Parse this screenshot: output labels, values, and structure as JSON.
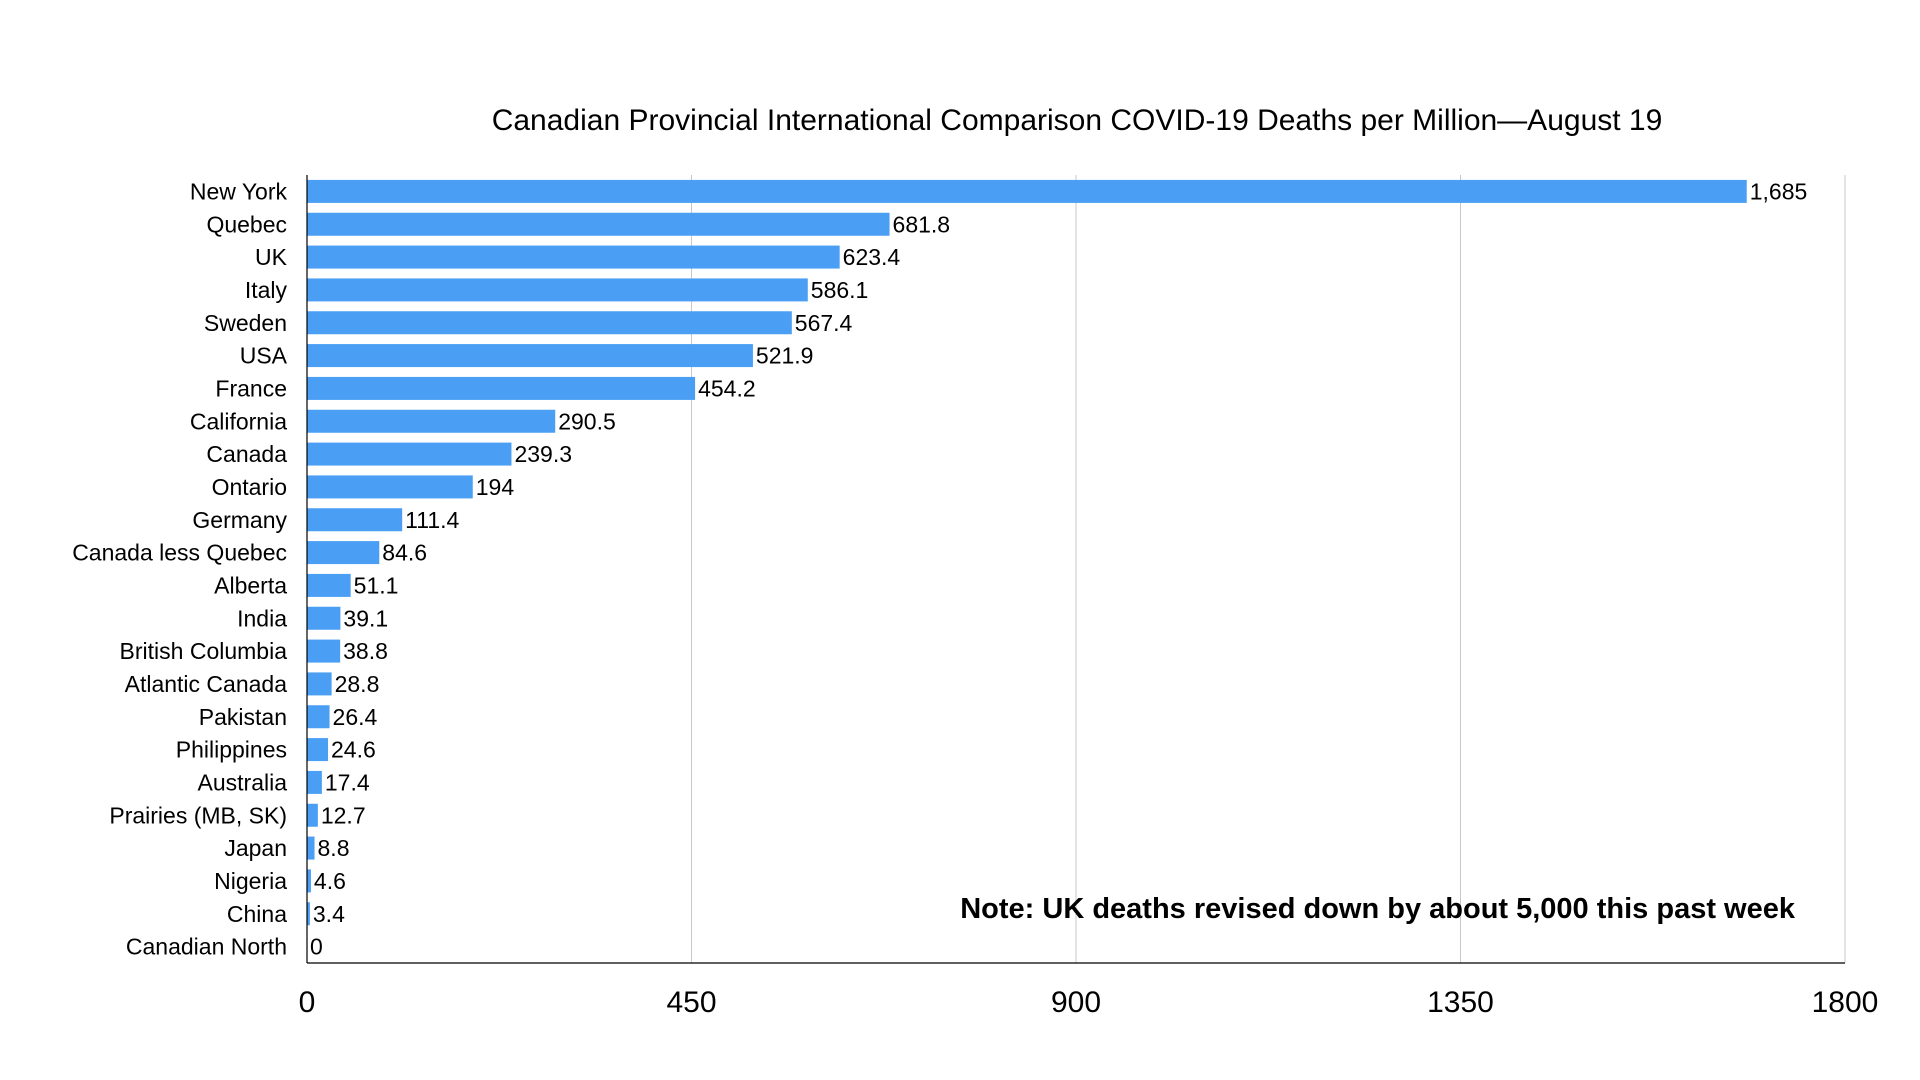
{
  "chart_data": {
    "type": "bar",
    "orientation": "horizontal",
    "title": "Canadian Provincial International Comparison COVID-19 Deaths per Million—August 19",
    "categories": [
      "New York",
      "Quebec",
      "UK",
      "Italy",
      "Sweden",
      "USA",
      "France",
      "California",
      "Canada",
      "Ontario",
      "Germany",
      "Canada less Quebec",
      "Alberta",
      "India",
      "British Columbia",
      "Atlantic Canada",
      "Pakistan",
      "Philippines",
      "Australia",
      "Prairies (MB, SK)",
      "Japan",
      "Nigeria",
      "China",
      "Canadian North"
    ],
    "values": [
      1685,
      681.8,
      623.4,
      586.1,
      567.4,
      521.9,
      454.2,
      290.5,
      239.3,
      194,
      111.4,
      84.6,
      51.1,
      39.1,
      38.8,
      28.8,
      26.4,
      24.6,
      17.4,
      12.7,
      8.8,
      4.6,
      3.4,
      0
    ],
    "value_labels": [
      "1,685",
      "681.8",
      "623.4",
      "586.1",
      "567.4",
      "521.9",
      "454.2",
      "290.5",
      "239.3",
      "194",
      "111.4",
      "84.6",
      "51.1",
      "39.1",
      "38.8",
      "28.8",
      "26.4",
      "24.6",
      "17.4",
      "12.7",
      "8.8",
      "4.6",
      "3.4",
      "0"
    ],
    "xlim": [
      0,
      1800
    ],
    "xticks": [
      0,
      450,
      900,
      1350,
      1800
    ],
    "xtick_labels": [
      "0",
      "450",
      "900",
      "1350",
      "1800"
    ],
    "xlabel": "",
    "ylabel": "",
    "grid": "vertical",
    "bar_color": "#4a9ff5",
    "annotation": "Note: UK deaths revised down by about 5,000 this past week"
  }
}
